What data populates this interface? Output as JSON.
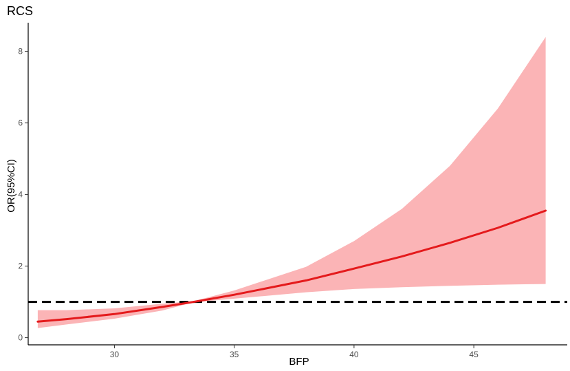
{
  "chart_data": {
    "type": "area",
    "title": "RCS",
    "xlabel": "BFP",
    "ylabel": "OR(95%CI)",
    "xlim": [
      26.4,
      48.9
    ],
    "ylim": [
      -0.2,
      8.8
    ],
    "x_ticks": [
      30,
      35,
      40,
      45
    ],
    "y_ticks": [
      0,
      2,
      4,
      6,
      8
    ],
    "grid": false,
    "legend": "none",
    "reference_line": {
      "y": 1,
      "style": "dashed",
      "color": "#000000"
    },
    "series": [
      {
        "type": "line",
        "color": "#e41a1c",
        "x": [
          26.8,
          28,
          30,
          32,
          33.3,
          35,
          38,
          40,
          42,
          44,
          46,
          48
        ],
        "y": [
          0.45,
          0.52,
          0.66,
          0.86,
          1.0,
          1.2,
          1.6,
          1.93,
          2.27,
          2.65,
          3.07,
          3.55
        ]
      },
      {
        "type": "ribbon",
        "color": "#fbb4b6",
        "x": [
          26.8,
          28,
          30,
          32,
          33.3,
          35,
          38,
          40,
          42,
          44,
          46,
          48
        ],
        "lower": [
          0.27,
          0.37,
          0.53,
          0.76,
          0.99,
          1.09,
          1.27,
          1.36,
          1.41,
          1.45,
          1.48,
          1.5
        ],
        "upper": [
          0.77,
          0.77,
          0.82,
          0.95,
          1.02,
          1.32,
          1.98,
          2.7,
          3.6,
          4.8,
          6.4,
          8.4
        ]
      }
    ]
  }
}
